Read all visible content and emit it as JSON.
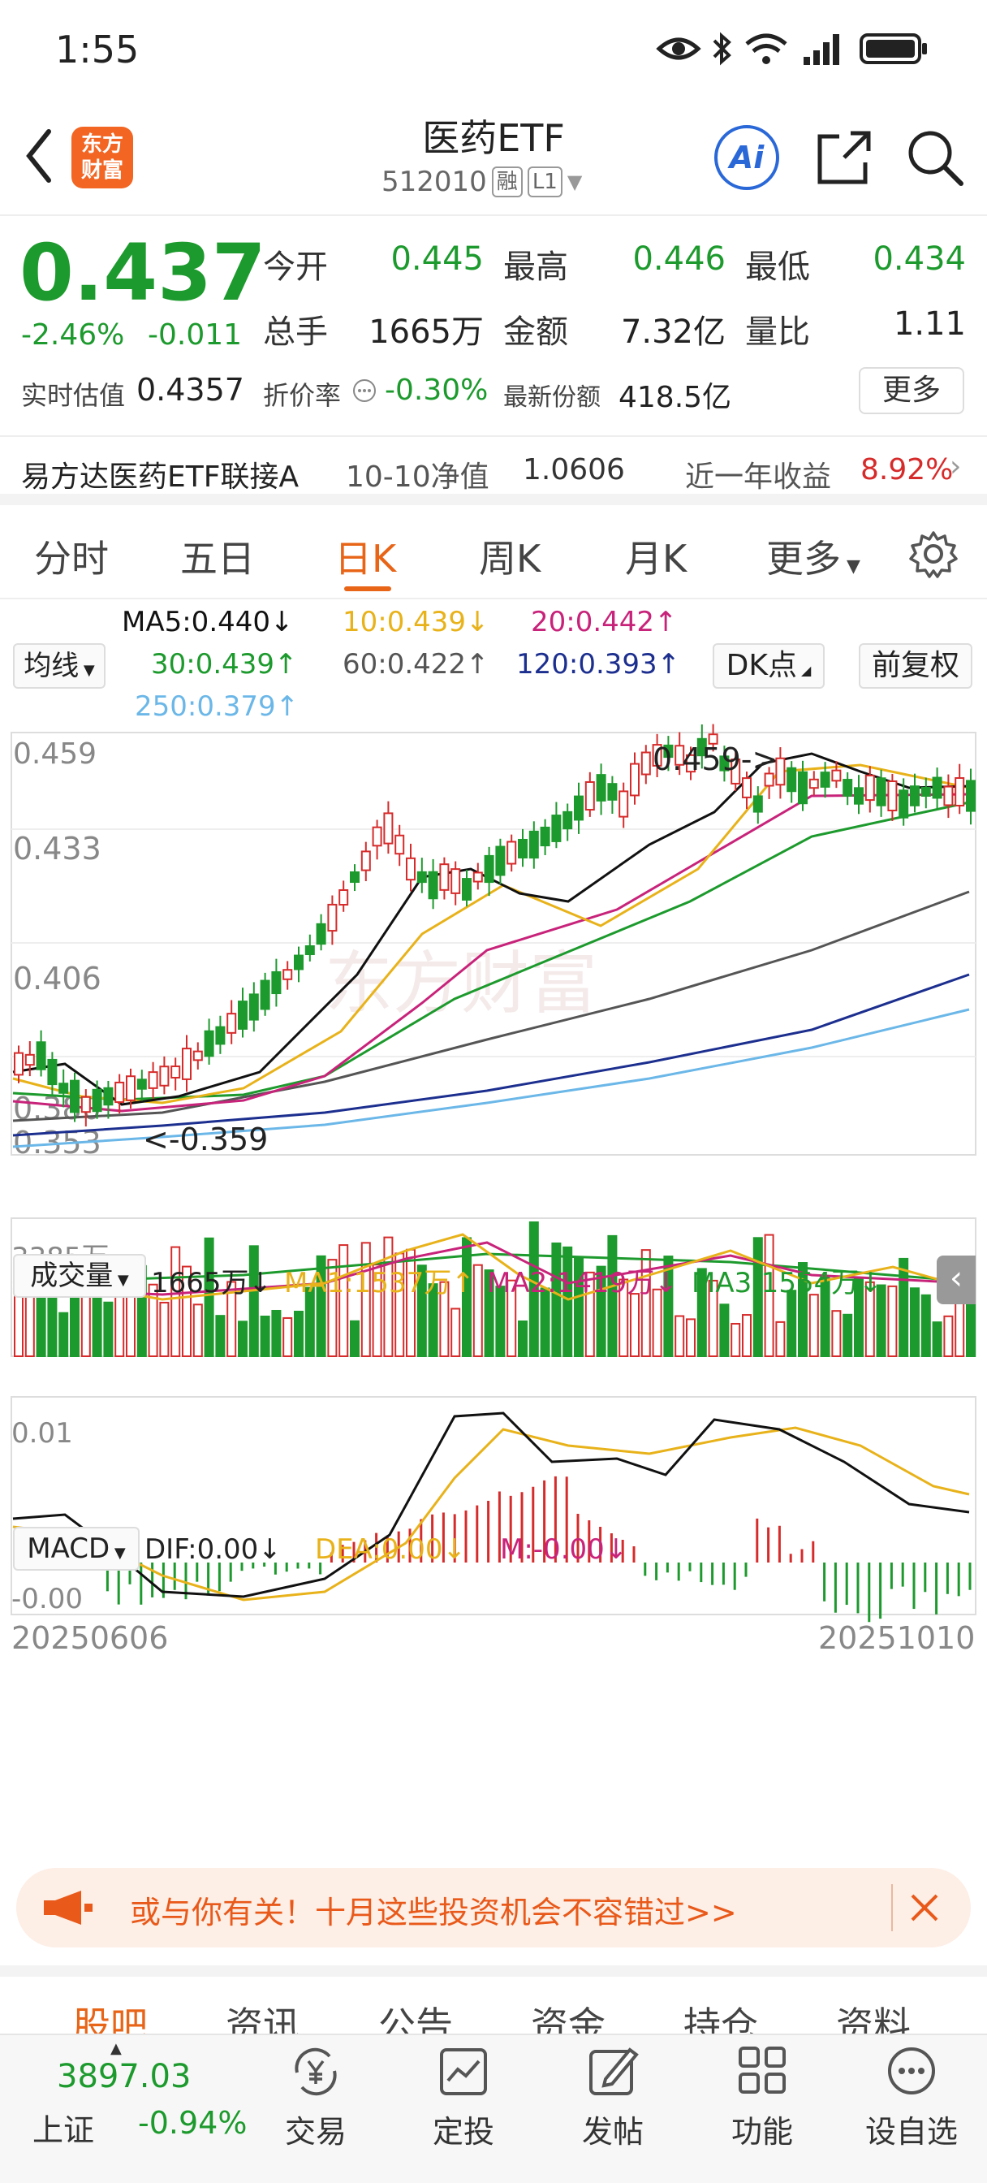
{
  "status_bar": {
    "time": "1:55"
  },
  "header": {
    "title": "医药ETF",
    "code": "512010",
    "tag_margin": "融",
    "tag_level": "L1",
    "logo_line1": "东方",
    "logo_line2": "财富",
    "ai_label": "Ai"
  },
  "quote": {
    "price": "0.437",
    "change_pct": "-2.46%",
    "change_val": "-0.011",
    "open_label": "今开",
    "open": "0.445",
    "high_label": "最高",
    "high": "0.446",
    "low_label": "最低",
    "low": "0.434",
    "volume_label": "总手",
    "volume": "1665万",
    "amount_label": "金额",
    "amount": "7.32亿",
    "ratio_label": "量比",
    "ratio": "1.11",
    "est_label": "实时估值",
    "est": "0.4357",
    "premium_label": "折价率",
    "premium": "-0.30%",
    "share_label": "最新份额",
    "share": "418.5亿",
    "more": "更多"
  },
  "fund": {
    "name": "易方达医药ETF联接A",
    "nav_label": "10-10净值",
    "nav": "1.0606",
    "year_label": "近一年收益",
    "year_return": "8.92%"
  },
  "tabs": [
    "分时",
    "五日",
    "日K",
    "周K",
    "月K",
    "更多"
  ],
  "ma_legend": {
    "selector": "均线",
    "ma5": "MA5:0.440↓",
    "ma10": "10:0.439↓",
    "ma20": "20:0.442↑",
    "ma30": "30:0.439↑",
    "ma60": "60:0.422↑",
    "ma120": "120:0.393↑",
    "ma250": "250:0.379↑",
    "dk_btn": "DK点",
    "adjust_btn": "前复权"
  },
  "kline": {
    "y_labels": [
      "0.459",
      "0.433",
      "0.406",
      "0.380",
      "0.353"
    ],
    "max_marker": "0.459->",
    "min_marker": "<-0.359",
    "watermark": "东方财富"
  },
  "volume": {
    "selector": "成交量",
    "value": "1665万↓",
    "ma1": "MA1:1537万↑",
    "ma2": "MA2:1419万↓",
    "ma3": "MA3:1554万↓",
    "max_label": "3385万"
  },
  "macd": {
    "selector": "MACD",
    "dif": "DIF:0.00↓",
    "dea": "DEA:0.00↓",
    "m": "M:-0.00↓",
    "top_label": "0.01",
    "bottom_label": "-0.00",
    "date_start": "20250606",
    "date_end": "20251010"
  },
  "banner": {
    "text": "或与你有关！十月这些投资机会不容错过>>"
  },
  "sub_tabs": [
    "股吧",
    "资讯",
    "公告",
    "资金",
    "持仓",
    "资料"
  ],
  "bottom_bar": {
    "index_value": "3897.03",
    "index_name": "上证",
    "index_change": "-0.94%",
    "items": [
      "交易",
      "定投",
      "发帖",
      "功能",
      "设自选"
    ]
  },
  "colors": {
    "accent": "#e86417",
    "up": "#d62b2b",
    "down": "#1d9a2d",
    "ma5": "#111111",
    "ma10": "#e8b21a",
    "ma20": "#c8237a",
    "ma30": "#1d9a2d",
    "ma60": "#555555",
    "ma120": "#1c2f8f",
    "ma250": "#6bb7e8"
  }
}
